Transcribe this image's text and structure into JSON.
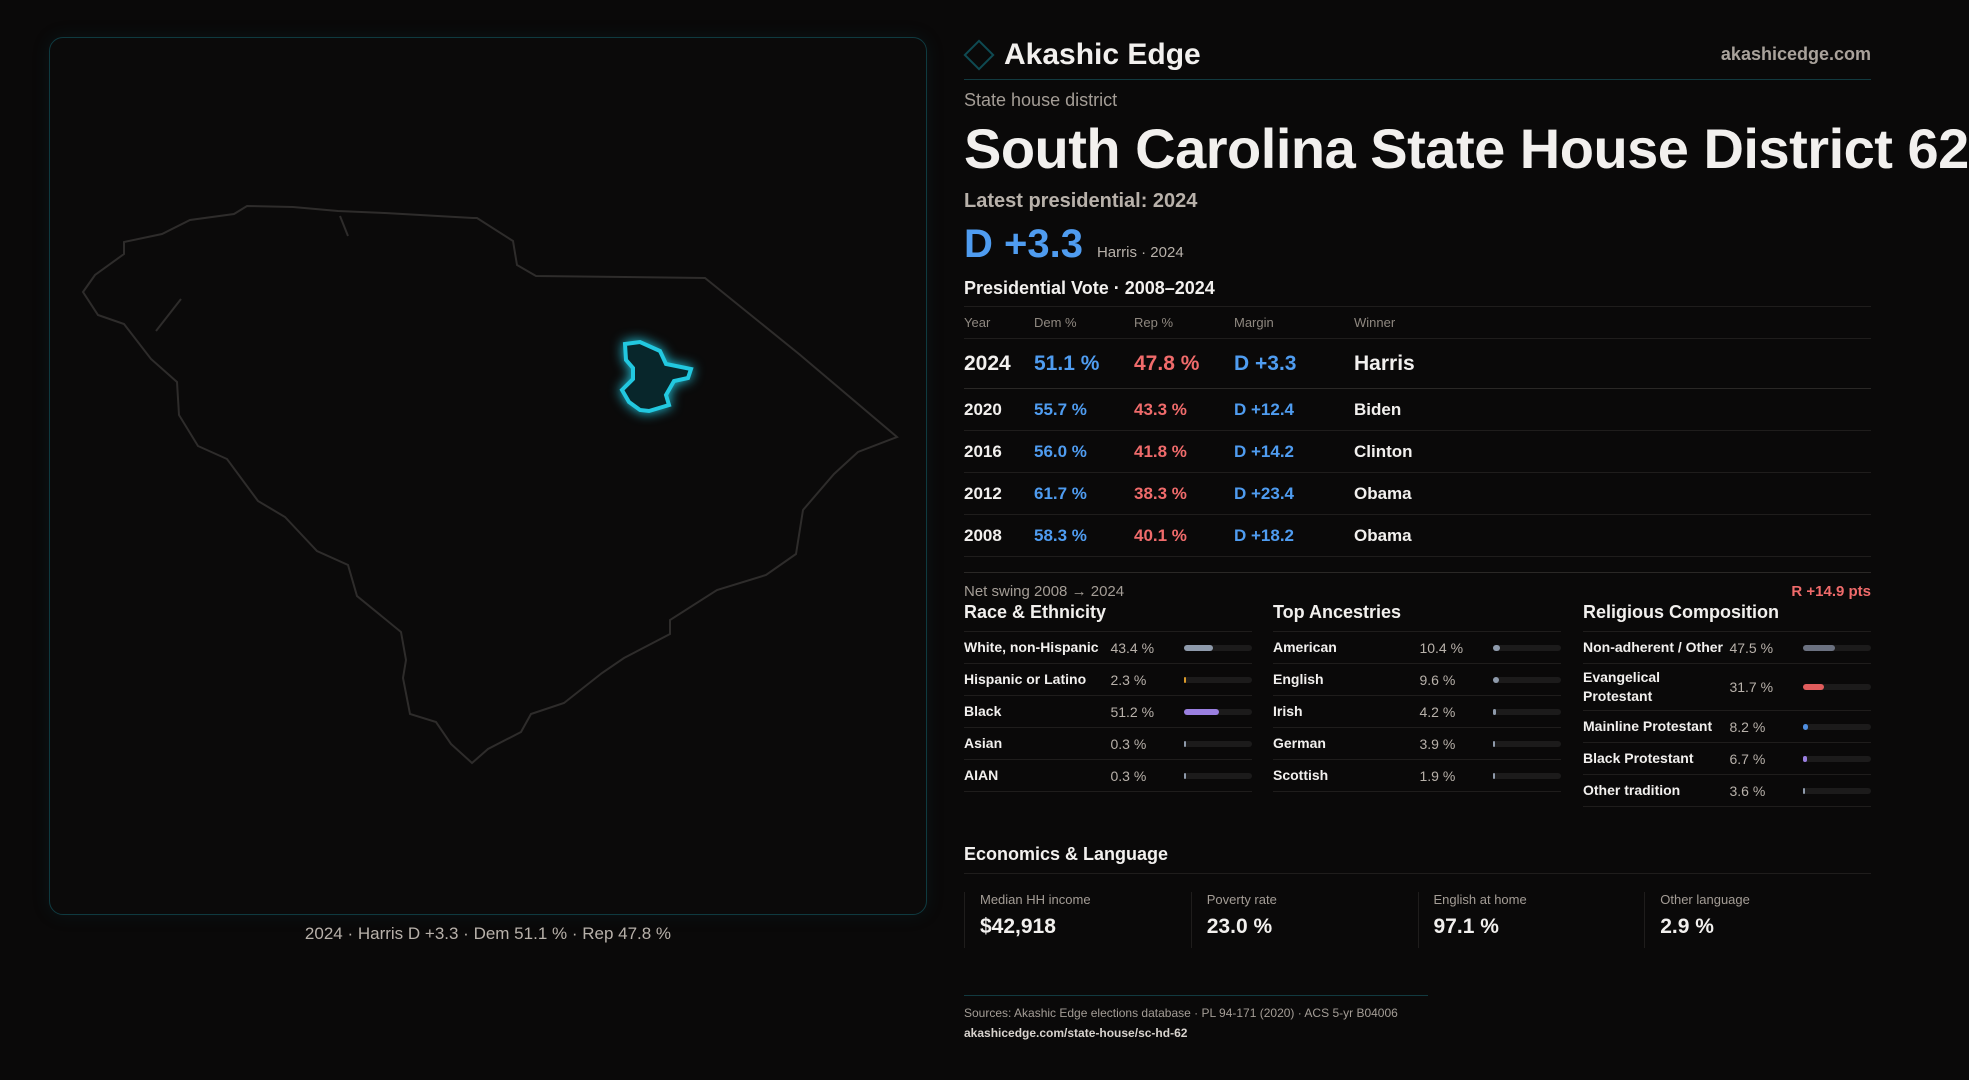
{
  "brand": {
    "name": "Akashic Edge",
    "site": "akashicedge.com",
    "logo_icon": "diamond-icon"
  },
  "kicker": "State house district",
  "title": "South Carolina State House District 62",
  "latest_label": "Latest presidential: 2024",
  "latest_margin": "D +3.3",
  "latest_sub": "Harris · 2024",
  "table_title": "Presidential Vote · 2008–2024",
  "columns": [
    "Year",
    "Dem %",
    "Rep %",
    "Margin",
    "Winner"
  ],
  "rows": [
    {
      "year": "2024",
      "dem": "51.1 %",
      "rep": "47.8 %",
      "margin": "D +3.3",
      "winner": "Harris"
    },
    {
      "year": "2020",
      "dem": "55.7 %",
      "rep": "43.3 %",
      "margin": "D +12.4",
      "winner": "Biden"
    },
    {
      "year": "2016",
      "dem": "56.0 %",
      "rep": "41.8 %",
      "margin": "D +14.2",
      "winner": "Clinton"
    },
    {
      "year": "2012",
      "dem": "61.7 %",
      "rep": "38.3 %",
      "margin": "D +23.4",
      "winner": "Obama"
    },
    {
      "year": "2008",
      "dem": "58.3 %",
      "rep": "40.1 %",
      "margin": "D +18.2",
      "winner": "Obama"
    }
  ],
  "swing": {
    "label": "Net swing 2008 → 2024",
    "value": "R +14.9 pts"
  },
  "race": {
    "title": "Race & Ethnicity",
    "items": [
      {
        "label": "White, non-Hispanic",
        "pct": "43.4 %",
        "value": 43.4,
        "color": "#8e9aab"
      },
      {
        "label": "Hispanic or Latino",
        "pct": "2.3 %",
        "value": 2.3,
        "color": "#d99a2b"
      },
      {
        "label": "Black",
        "pct": "51.2 %",
        "value": 51.2,
        "color": "#9a7fe0"
      },
      {
        "label": "Asian",
        "pct": "0.3 %",
        "value": 0.3,
        "color": "#8e9aab"
      },
      {
        "label": "AIAN",
        "pct": "0.3 %",
        "value": 0.3,
        "color": "#8e9aab"
      }
    ]
  },
  "ancestry": {
    "title": "Top Ancestries",
    "items": [
      {
        "label": "American",
        "pct": "10.4 %",
        "value": 10.4,
        "color": "#8e9aab"
      },
      {
        "label": "English",
        "pct": "9.6 %",
        "value": 9.6,
        "color": "#8e9aab"
      },
      {
        "label": "Irish",
        "pct": "4.2 %",
        "value": 4.2,
        "color": "#8e9aab"
      },
      {
        "label": "German",
        "pct": "3.9 %",
        "value": 3.9,
        "color": "#8e9aab"
      },
      {
        "label": "Scottish",
        "pct": "1.9 %",
        "value": 1.9,
        "color": "#8e9aab"
      }
    ]
  },
  "religion": {
    "title": "Religious Composition",
    "items": [
      {
        "label": "Non-adherent / Other",
        "pct": "47.5 %",
        "value": 47.5,
        "color": "#6b7180"
      },
      {
        "label": "Evangelical Protestant",
        "pct": "31.7 %",
        "value": 31.7,
        "color": "#e05c5c"
      },
      {
        "label": "Mainline Protestant",
        "pct": "8.2 %",
        "value": 8.2,
        "color": "#4f8ee0"
      },
      {
        "label": "Black Protestant",
        "pct": "6.7 %",
        "value": 6.7,
        "color": "#9a7fe0"
      },
      {
        "label": "Other tradition",
        "pct": "3.6 %",
        "value": 3.6,
        "color": "#8e9aab"
      }
    ]
  },
  "economics": {
    "title": "Economics & Language",
    "cards": [
      {
        "label": "Median HH income",
        "value": "$42,918"
      },
      {
        "label": "Poverty rate",
        "value": "23.0 %"
      },
      {
        "label": "English at home",
        "value": "97.1 %"
      },
      {
        "label": "Other language",
        "value": "2.9 %"
      }
    ]
  },
  "sources": "Sources: Akashic Edge elections database · PL 94-171 (2020) · ACS 5-yr B04006",
  "url": "akashicedge.com/state-house/sc-hd-62",
  "map_caption": "2024 · Harris D +3.3 · Dem 51.1 % · Rep 47.8 %",
  "colors": {
    "dem": "#4f9cf0",
    "rep": "#f06b6b",
    "district": "#22c8e0"
  }
}
